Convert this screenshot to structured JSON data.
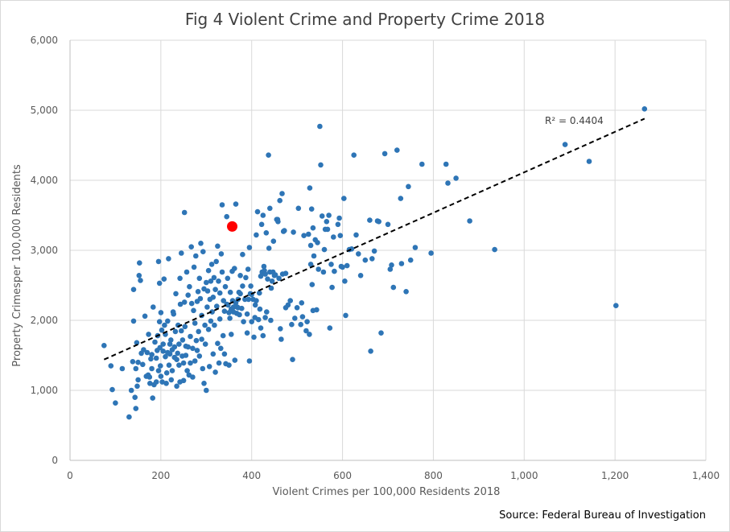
{
  "chart_data": {
    "type": "scatter",
    "title": "Fig 4 Violent Crime and Property Crime 2018",
    "xlabel": "Violent Crimes per 100,000 Residents 2018",
    "ylabel": "Property Crimesper 100,000 Residents",
    "xlim": [
      0,
      1400
    ],
    "ylim": [
      0,
      6000
    ],
    "xticks": [
      0,
      200,
      400,
      600,
      800,
      1000,
      1200,
      1400
    ],
    "yticks": [
      0,
      1000,
      2000,
      3000,
      4000,
      5000,
      6000
    ],
    "xtick_labels": [
      "0",
      "200",
      "400",
      "600",
      "800",
      "1,000",
      "1,200",
      "1,400"
    ],
    "ytick_labels": [
      "0",
      "1,000",
      "2,000",
      "3,000",
      "4,000",
      "5,000",
      "6,000"
    ],
    "grid": true,
    "source": "Source: Federal Bureau of Investigation",
    "colors": {
      "points": "#2e75b6",
      "highlight": "#ff0000",
      "trendline": "#000000",
      "grid": "#d9d9d9"
    },
    "trendline": {
      "type": "linear",
      "r2_label": "R² = 0.4404",
      "x": [
        75,
        1265
      ],
      "y": [
        1440,
        4880
      ]
    },
    "highlight": {
      "x": 357,
      "y": 3340
    },
    "points": [
      [
        75,
        1640
      ],
      [
        90,
        1350
      ],
      [
        93,
        1010
      ],
      [
        100,
        820
      ],
      [
        115,
        1310
      ],
      [
        130,
        620
      ],
      [
        135,
        1000
      ],
      [
        138,
        1410
      ],
      [
        140,
        2440
      ],
      [
        140,
        1990
      ],
      [
        143,
        900
      ],
      [
        145,
        1310
      ],
      [
        145,
        740
      ],
      [
        147,
        1680
      ],
      [
        148,
        1060
      ],
      [
        150,
        1400
      ],
      [
        150,
        1150
      ],
      [
        152,
        2640
      ],
      [
        153,
        2820
      ],
      [
        155,
        2570
      ],
      [
        157,
        1530
      ],
      [
        160,
        1370
      ],
      [
        162,
        1580
      ],
      [
        165,
        2060
      ],
      [
        168,
        1200
      ],
      [
        170,
        1540
      ],
      [
        172,
        1220
      ],
      [
        173,
        1800
      ],
      [
        175,
        1190
      ],
      [
        176,
        1100
      ],
      [
        178,
        1450
      ],
      [
        180,
        1510
      ],
      [
        180,
        1310
      ],
      [
        182,
        890
      ],
      [
        183,
        2190
      ],
      [
        185,
        1080
      ],
      [
        187,
        1690
      ],
      [
        190,
        1460
      ],
      [
        190,
        1120
      ],
      [
        192,
        1570
      ],
      [
        193,
        1780
      ],
      [
        195,
        2840
      ],
      [
        195,
        1280
      ],
      [
        197,
        2530
      ],
      [
        197,
        1980
      ],
      [
        198,
        1610
      ],
      [
        199,
        1350
      ],
      [
        200,
        1200
      ],
      [
        200,
        2110
      ],
      [
        202,
        1860
      ],
      [
        203,
        1120
      ],
      [
        205,
        1560
      ],
      [
        205,
        1660
      ],
      [
        207,
        2590
      ],
      [
        208,
        1930
      ],
      [
        210,
        1800
      ],
      [
        210,
        1480
      ],
      [
        212,
        1100
      ],
      [
        213,
        1250
      ],
      [
        215,
        1990
      ],
      [
        215,
        1540
      ],
      [
        217,
        2880
      ],
      [
        218,
        1360
      ],
      [
        220,
        1660
      ],
      [
        220,
        1520
      ],
      [
        222,
        1720
      ],
      [
        223,
        1150
      ],
      [
        225,
        1580
      ],
      [
        225,
        1280
      ],
      [
        227,
        2120
      ],
      [
        228,
        2090
      ],
      [
        230,
        1620
      ],
      [
        230,
        1470
      ],
      [
        232,
        1840
      ],
      [
        233,
        2380
      ],
      [
        235,
        1060
      ],
      [
        235,
        1440
      ],
      [
        237,
        1530
      ],
      [
        238,
        1930
      ],
      [
        240,
        1660
      ],
      [
        240,
        1360
      ],
      [
        242,
        1120
      ],
      [
        242,
        2600
      ],
      [
        243,
        2230
      ],
      [
        245,
        2960
      ],
      [
        245,
        1850
      ],
      [
        247,
        1490
      ],
      [
        248,
        1720
      ],
      [
        250,
        1390
      ],
      [
        250,
        1140
      ],
      [
        252,
        3540
      ],
      [
        252,
        2260
      ],
      [
        253,
        1910
      ],
      [
        255,
        1630
      ],
      [
        255,
        1500
      ],
      [
        257,
        2690
      ],
      [
        258,
        1280
      ],
      [
        260,
        2360
      ],
      [
        260,
        1620
      ],
      [
        262,
        1220
      ],
      [
        263,
        2480
      ],
      [
        265,
        1770
      ],
      [
        265,
        1390
      ],
      [
        267,
        3050
      ],
      [
        268,
        2240
      ],
      [
        270,
        1600
      ],
      [
        270,
        1190
      ],
      [
        272,
        2140
      ],
      [
        273,
        2760
      ],
      [
        275,
        1960
      ],
      [
        275,
        1420
      ],
      [
        277,
        2920
      ],
      [
        278,
        1710
      ],
      [
        280,
        1570
      ],
      [
        280,
        2270
      ],
      [
        282,
        2410
      ],
      [
        283,
        1840
      ],
      [
        285,
        1490
      ],
      [
        285,
        2600
      ],
      [
        287,
        2310
      ],
      [
        288,
        3100
      ],
      [
        290,
        2070
      ],
      [
        290,
        1730
      ],
      [
        292,
        1310
      ],
      [
        293,
        2980
      ],
      [
        295,
        2450
      ],
      [
        295,
        1100
      ],
      [
        297,
        1930
      ],
      [
        298,
        1660
      ],
      [
        300,
        2540
      ],
      [
        300,
        1000
      ],
      [
        302,
        2190
      ],
      [
        303,
        2420
      ],
      [
        305,
        1870
      ],
      [
        305,
        2710
      ],
      [
        307,
        1340
      ],
      [
        308,
        2300
      ],
      [
        310,
        1990
      ],
      [
        310,
        2560
      ],
      [
        312,
        2800
      ],
      [
        313,
        2120
      ],
      [
        315,
        1520
      ],
      [
        315,
        2330
      ],
      [
        317,
        2610
      ],
      [
        318,
        1930
      ],
      [
        320,
        2440
      ],
      [
        320,
        1260
      ],
      [
        322,
        2840
      ],
      [
        323,
        2200
      ],
      [
        325,
        1670
      ],
      [
        325,
        3060
      ],
      [
        327,
        2560
      ],
      [
        328,
        1390
      ],
      [
        330,
        2020
      ],
      [
        330,
        2390
      ],
      [
        332,
        1600
      ],
      [
        333,
        2950
      ],
      [
        335,
        2690
      ],
      [
        335,
        3650
      ],
      [
        337,
        1780
      ],
      [
        338,
        2280
      ],
      [
        340,
        1520
      ],
      [
        340,
        2130
      ],
      [
        342,
        2480
      ],
      [
        343,
        1380
      ],
      [
        345,
        2230
      ],
      [
        345,
        3480
      ],
      [
        347,
        2600
      ],
      [
        348,
        2220
      ],
      [
        350,
        1360
      ],
      [
        350,
        2110
      ],
      [
        352,
        2030
      ],
      [
        353,
        2400
      ],
      [
        355,
        2160
      ],
      [
        355,
        1800
      ],
      [
        357,
        2700
      ],
      [
        358,
        2280
      ],
      [
        360,
        2190
      ],
      [
        360,
        2120
      ],
      [
        362,
        2740
      ],
      [
        363,
        1430
      ],
      [
        365,
        3660
      ],
      [
        365,
        2250
      ],
      [
        367,
        2100
      ],
      [
        368,
        2190
      ],
      [
        370,
        2300
      ],
      [
        370,
        2180
      ],
      [
        372,
        2400
      ],
      [
        373,
        2080
      ],
      [
        375,
        2640
      ],
      [
        375,
        2380
      ],
      [
        378,
        2170
      ],
      [
        380,
        2490
      ],
      [
        380,
        2940
      ],
      [
        382,
        1980
      ],
      [
        385,
        2300
      ],
      [
        387,
        2610
      ],
      [
        390,
        2090
      ],
      [
        390,
        1820
      ],
      [
        392,
        2730
      ],
      [
        393,
        2300
      ],
      [
        395,
        3040
      ],
      [
        395,
        1420
      ],
      [
        397,
        2380
      ],
      [
        398,
        2490
      ],
      [
        400,
        2370
      ],
      [
        400,
        1980
      ],
      [
        403,
        2300
      ],
      [
        405,
        1760
      ],
      [
        407,
        2040
      ],
      [
        408,
        2220
      ],
      [
        410,
        2280
      ],
      [
        410,
        3220
      ],
      [
        413,
        3550
      ],
      [
        415,
        2010
      ],
      [
        417,
        2390
      ],
      [
        418,
        2160
      ],
      [
        420,
        2630
      ],
      [
        420,
        1890
      ],
      [
        422,
        3370
      ],
      [
        423,
        2690
      ],
      [
        425,
        1780
      ],
      [
        425,
        3500
      ],
      [
        427,
        2770
      ],
      [
        428,
        2710
      ],
      [
        430,
        2660
      ],
      [
        430,
        2040
      ],
      [
        432,
        3250
      ],
      [
        433,
        2120
      ],
      [
        435,
        2590
      ],
      [
        437,
        4360
      ],
      [
        438,
        3030
      ],
      [
        440,
        3600
      ],
      [
        440,
        2690
      ],
      [
        442,
        2000
      ],
      [
        443,
        2460
      ],
      [
        445,
        2560
      ],
      [
        447,
        2690
      ],
      [
        448,
        3130
      ],
      [
        450,
        2640
      ],
      [
        452,
        2650
      ],
      [
        455,
        3440
      ],
      [
        457,
        3440
      ],
      [
        458,
        3410
      ],
      [
        460,
        2600
      ],
      [
        462,
        3710
      ],
      [
        463,
        1880
      ],
      [
        465,
        1730
      ],
      [
        467,
        3810
      ],
      [
        468,
        2660
      ],
      [
        470,
        3270
      ],
      [
        472,
        3280
      ],
      [
        475,
        2670
      ],
      [
        475,
        2180
      ],
      [
        480,
        2220
      ],
      [
        485,
        2280
      ],
      [
        488,
        1940
      ],
      [
        490,
        1440
      ],
      [
        492,
        3260
      ],
      [
        495,
        2030
      ],
      [
        500,
        2180
      ],
      [
        503,
        3600
      ],
      [
        508,
        1940
      ],
      [
        510,
        2250
      ],
      [
        512,
        2050
      ],
      [
        515,
        3210
      ],
      [
        520,
        1850
      ],
      [
        522,
        1980
      ],
      [
        525,
        3230
      ],
      [
        527,
        1800
      ],
      [
        528,
        3890
      ],
      [
        530,
        3070
      ],
      [
        530,
        2800
      ],
      [
        532,
        3590
      ],
      [
        533,
        2510
      ],
      [
        535,
        2140
      ],
      [
        535,
        3320
      ],
      [
        537,
        2920
      ],
      [
        540,
        3150
      ],
      [
        543,
        2150
      ],
      [
        545,
        3110
      ],
      [
        547,
        2730
      ],
      [
        550,
        4770
      ],
      [
        552,
        4220
      ],
      [
        555,
        3490
      ],
      [
        558,
        2690
      ],
      [
        560,
        3010
      ],
      [
        562,
        3300
      ],
      [
        565,
        3410
      ],
      [
        567,
        3300
      ],
      [
        570,
        3500
      ],
      [
        572,
        1890
      ],
      [
        575,
        2800
      ],
      [
        577,
        2470
      ],
      [
        580,
        3190
      ],
      [
        582,
        2700
      ],
      [
        590,
        3370
      ],
      [
        593,
        3460
      ],
      [
        595,
        3210
      ],
      [
        597,
        2770
      ],
      [
        600,
        2760
      ],
      [
        603,
        3740
      ],
      [
        605,
        2560
      ],
      [
        607,
        2070
      ],
      [
        610,
        2780
      ],
      [
        615,
        3010
      ],
      [
        620,
        3020
      ],
      [
        625,
        4360
      ],
      [
        630,
        3220
      ],
      [
        635,
        2950
      ],
      [
        640,
        2640
      ],
      [
        650,
        2860
      ],
      [
        660,
        3430
      ],
      [
        662,
        1560
      ],
      [
        665,
        2880
      ],
      [
        670,
        2990
      ],
      [
        677,
        3420
      ],
      [
        680,
        3410
      ],
      [
        685,
        1820
      ],
      [
        693,
        4380
      ],
      [
        700,
        3370
      ],
      [
        705,
        2730
      ],
      [
        708,
        2790
      ],
      [
        712,
        2470
      ],
      [
        720,
        4430
      ],
      [
        728,
        3740
      ],
      [
        730,
        2810
      ],
      [
        740,
        2410
      ],
      [
        745,
        3910
      ],
      [
        750,
        2860
      ],
      [
        760,
        3040
      ],
      [
        775,
        4230
      ],
      [
        795,
        2960
      ],
      [
        828,
        4230
      ],
      [
        832,
        3960
      ],
      [
        850,
        4030
      ],
      [
        880,
        3420
      ],
      [
        935,
        3010
      ],
      [
        1090,
        4510
      ],
      [
        1143,
        4270
      ],
      [
        1202,
        2210
      ],
      [
        1265,
        5020
      ]
    ]
  }
}
